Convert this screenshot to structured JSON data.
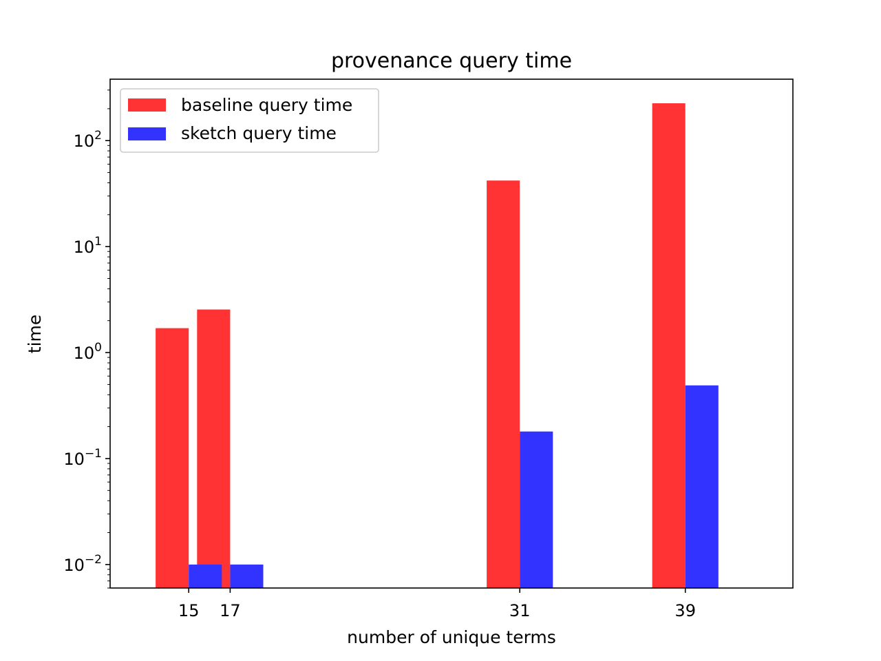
{
  "chart_data": {
    "type": "bar",
    "title": "provenance query time",
    "xlabel": "number of unique terms",
    "ylabel": "time",
    "y_scale": "log",
    "ylim": [
      0.006,
      380
    ],
    "xlim": [
      11.2,
      44.2
    ],
    "categories": [
      15,
      17,
      31,
      39
    ],
    "series": [
      {
        "name": "baseline query time",
        "color": "#ff3333",
        "values": [
          1.7,
          2.55,
          42,
          225
        ]
      },
      {
        "name": "sketch query time",
        "color": "#3333ff",
        "values": [
          0.01,
          0.01,
          0.18,
          0.49
        ]
      }
    ],
    "bar_width": 1.6,
    "ytick_labels": [
      {
        "value": 0.01,
        "base": "10",
        "exp": "−2"
      },
      {
        "value": 0.1,
        "base": "10",
        "exp": "−1"
      },
      {
        "value": 1,
        "base": "10",
        "exp": "0"
      },
      {
        "value": 10,
        "base": "10",
        "exp": "1"
      },
      {
        "value": 100,
        "base": "10",
        "exp": "2"
      }
    ],
    "legend_position": "upper left",
    "grid": false
  }
}
